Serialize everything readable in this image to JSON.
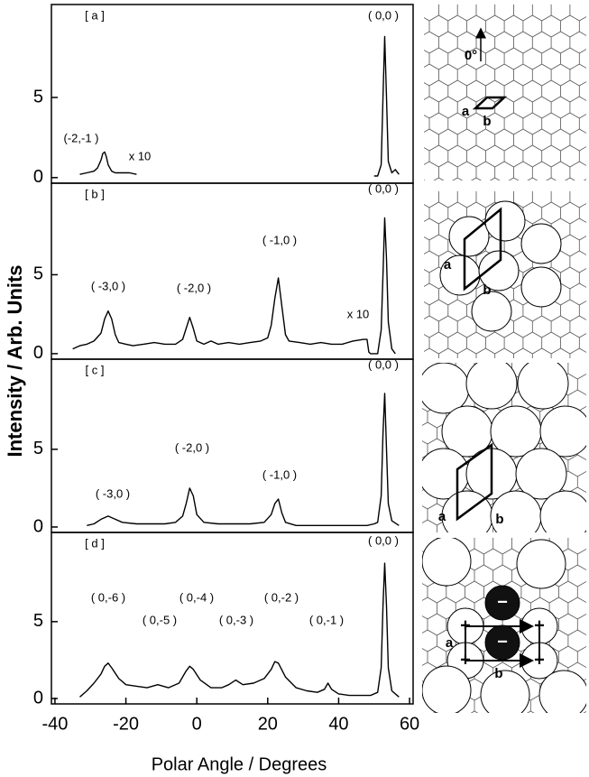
{
  "axis_labels": {
    "x": "Polar Angle / Degrees",
    "y": "Intensity / Arb. Units"
  },
  "chart_data": [
    {
      "type": "line",
      "panel_label": "[ a ]",
      "color": "#000000",
      "xlim": [
        -41,
        61
      ],
      "ylim": [
        -0.35,
        10.8
      ],
      "yticks": [
        0,
        5
      ],
      "annotations": [
        "( 0,0 )",
        "(-2,-1 )",
        "x 10"
      ],
      "x": [
        -33,
        -31,
        -29,
        -28,
        -27,
        -26.5,
        -26,
        -25.5,
        -25,
        -24,
        -23,
        -21,
        -19,
        -17,
        20,
        50,
        51,
        52,
        52.5,
        53,
        53.5,
        54,
        55,
        56,
        57
      ],
      "values": [
        0.2,
        0.3,
        0.4,
        0.6,
        1.1,
        1.5,
        1.6,
        1.3,
        0.8,
        0.4,
        0.3,
        0.3,
        0.3,
        0.2,
        null,
        0.1,
        0.1,
        0.8,
        5,
        8.8,
        5,
        1,
        0.3,
        0.5,
        0.2
      ]
    },
    {
      "type": "line",
      "panel_label": "[ b ]",
      "color": "#000000",
      "xlim": [
        -41,
        61
      ],
      "ylim": [
        -0.35,
        10.8
      ],
      "yticks": [
        0,
        5
      ],
      "annotations": [
        "( 0,0 )",
        "( -1,0 )",
        "( -2,0 )",
        "( -3,0 )",
        "x 10"
      ],
      "x": [
        -35,
        -33,
        -31,
        -29,
        -27,
        -26,
        -25,
        -24,
        -23,
        -22,
        -20,
        -18,
        -15,
        -12,
        -9,
        -6,
        -4,
        -3,
        -2,
        -1,
        0,
        2,
        4,
        6,
        9,
        12,
        15,
        18,
        20,
        21,
        22,
        23,
        24,
        25,
        26,
        29,
        32,
        35,
        38,
        41,
        44,
        47,
        48,
        48.5,
        49,
        50,
        51,
        52,
        52.5,
        53,
        53.5,
        54,
        55,
        56
      ],
      "values": [
        0.3,
        0.5,
        0.6,
        0.8,
        1.3,
        2.2,
        2.7,
        2.2,
        1.2,
        0.7,
        0.6,
        0.5,
        0.6,
        0.7,
        0.6,
        0.6,
        0.9,
        1.6,
        2.3,
        1.6,
        0.8,
        0.6,
        0.8,
        0.6,
        0.7,
        0.6,
        0.7,
        0.8,
        1.0,
        1.8,
        3.5,
        4.8,
        3.0,
        1.2,
        0.8,
        0.7,
        0.6,
        0.7,
        0.6,
        0.6,
        0.8,
        0.9,
        0.9,
        0.1,
        0,
        0,
        0,
        1.5,
        5,
        8.6,
        6,
        2,
        0.3,
        0
      ]
    },
    {
      "type": "line",
      "panel_label": "[ c ]",
      "color": "#000000",
      "xlim": [
        -41,
        61
      ],
      "ylim": [
        -0.35,
        10.8
      ],
      "yticks": [
        0,
        5
      ],
      "annotations": [
        "( 0,0 )",
        "( -3,0 )",
        "( -2,0 )",
        "( -1,0 )"
      ],
      "x": [
        -31,
        -29,
        -27,
        -25,
        -23,
        -21,
        -17,
        -13,
        -9,
        -6,
        -4,
        -3,
        -2,
        -1,
        0,
        2,
        6,
        10,
        15,
        19,
        21,
        22,
        23,
        24,
        25,
        28,
        33,
        38,
        43,
        48,
        50,
        51,
        52,
        52.5,
        53,
        53.5,
        54,
        55,
        57
      ],
      "values": [
        0.1,
        0.2,
        0.5,
        0.7,
        0.5,
        0.3,
        0.2,
        0.2,
        0.2,
        0.3,
        0.7,
        1.5,
        2.5,
        2.0,
        0.8,
        0.3,
        0.2,
        0.2,
        0.2,
        0.3,
        0.8,
        1.5,
        1.8,
        0.9,
        0.3,
        0.1,
        0.1,
        0.1,
        0.1,
        0.1,
        0.2,
        0.3,
        2,
        6,
        8.6,
        5,
        1.5,
        0.4,
        0.1
      ]
    },
    {
      "type": "line",
      "panel_label": "[ d ]",
      "color": "#000000",
      "xlim": [
        -41,
        61
      ],
      "ylim": [
        -0.35,
        10.8
      ],
      "yticks": [
        0,
        5
      ],
      "xticks": [
        -40,
        -20,
        0,
        20,
        40,
        60
      ],
      "annotations": [
        "( 0,0 )",
        "( 0,-6 )",
        "( 0,-5 )",
        "( 0,-4 )",
        "( 0,-3 )",
        "( 0,-2 )",
        "( 0,-1 )"
      ],
      "x": [
        -33,
        -31,
        -29,
        -27,
        -26,
        -25,
        -24,
        -22,
        -20,
        -17,
        -14,
        -11,
        -8,
        -5,
        -3,
        -2,
        -1,
        1,
        4,
        7,
        9,
        11,
        13,
        16,
        19,
        21,
        22,
        23,
        25,
        28,
        31,
        34,
        36,
        37,
        38,
        40,
        43,
        46,
        49,
        51,
        52,
        52.5,
        53,
        53.5,
        54,
        55,
        57
      ],
      "values": [
        0.1,
        0.5,
        1.0,
        1.6,
        2.1,
        2.3,
        2.0,
        1.3,
        0.9,
        0.8,
        0.7,
        0.9,
        0.7,
        1.0,
        1.8,
        2.1,
        1.9,
        1.2,
        0.7,
        0.7,
        0.9,
        1.2,
        0.9,
        1.0,
        1.3,
        1.9,
        2.4,
        2.3,
        1.4,
        0.7,
        0.5,
        0.4,
        0.6,
        1.0,
        0.6,
        0.3,
        0.2,
        0.2,
        0.2,
        0.4,
        2,
        6,
        8.8,
        6,
        2,
        0.5,
        0.1
      ]
    }
  ],
  "diagrams": [
    {
      "labels": [
        "0°",
        "a",
        "b"
      ]
    },
    {
      "labels": [
        "a",
        "b"
      ]
    },
    {
      "labels": [
        "a",
        "b"
      ]
    },
    {
      "labels": [
        "+",
        "+",
        "+",
        "+",
        "−",
        "−",
        "a",
        "b"
      ]
    }
  ]
}
